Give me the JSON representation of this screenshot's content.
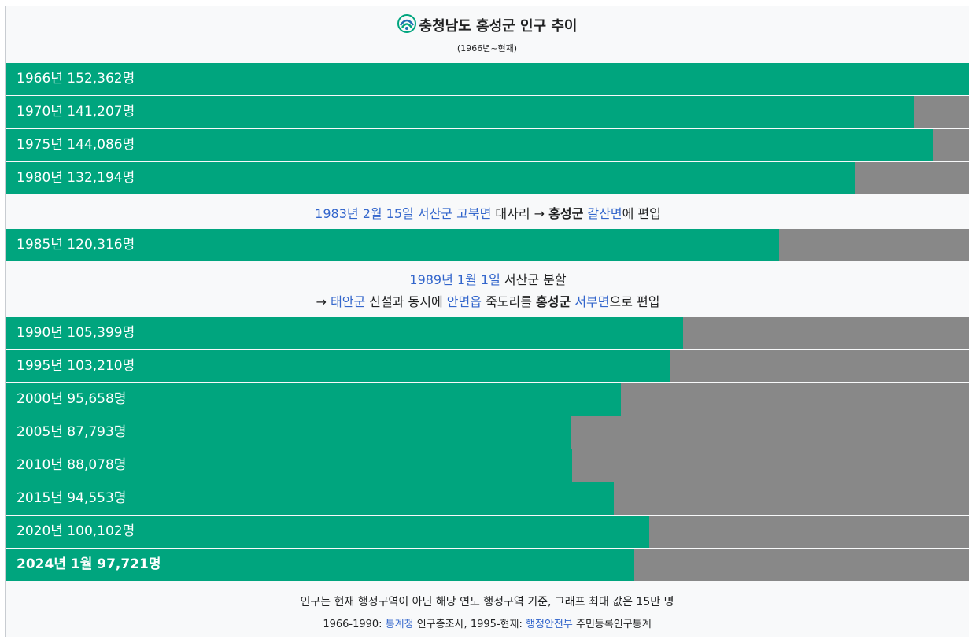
{
  "header": {
    "title": "충청남도 홍성군 인구 추이",
    "subtitle": "(1966년~현재)",
    "logo_icon": "hongseong-emblem-icon"
  },
  "colors": {
    "bar": "#00a57e",
    "remainder": "#888888",
    "link": "#3366cc"
  },
  "chart_data": {
    "type": "bar",
    "orientation": "horizontal",
    "title": "충청남도 홍성군 인구 추이",
    "subtitle": "(1966년~현재)",
    "max": 150000,
    "labels": [
      "1966년 152,362명",
      "1970년 141,207명",
      "1975년 144,086명",
      "1980년 132,194명",
      "1985년 120,316명",
      "1990년 105,399명",
      "1995년 103,210명",
      "2000년 95,658명",
      "2005년 87,793명",
      "2010년 88,078명",
      "2015년 94,553명",
      "2020년 100,102명",
      "2024년 1월 97,721명"
    ],
    "values": [
      152362,
      141207,
      144086,
      132194,
      120316,
      105399,
      103210,
      95658,
      87793,
      88078,
      94553,
      100102,
      97721
    ]
  },
  "notes": {
    "n1983": {
      "a": "1983년 2월 15일",
      "b": "서산군",
      "c": "고북면",
      "d": "대사리 →",
      "e": "홍성군",
      "f": "갈산면",
      "g": "에 편입"
    },
    "n1989": {
      "a": "1989년 1월 1일",
      "b": "서산군 분할",
      "c": "→",
      "d": "태안군",
      "e": "신설과 동시에",
      "f": "안면읍",
      "g": "죽도리를",
      "h": "홍성군",
      "i": "서부면",
      "j": "으로 편입"
    }
  },
  "footer": {
    "line1": "인구는 현재 행정구역이 아닌 해당 연도 행정구역 기준, 그래프 최대 값은 15만 명",
    "l2a": "1966-1990:",
    "l2b": "통계청",
    "l2c": "인구총조사, 1995-현재:",
    "l2d": "행정안전부",
    "l2e": "주민등록인구통계"
  }
}
